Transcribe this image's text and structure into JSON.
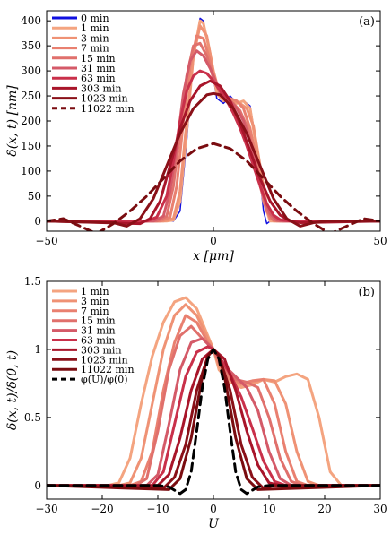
{
  "chart_data": [
    {
      "type": "line",
      "panel_label": "(a)",
      "xlabel": "x [μm]",
      "ylabel": "δ(x, t) [nm]",
      "xlim": [
        -50,
        50
      ],
      "ylim": [
        -20,
        420
      ],
      "xticks": [
        -50,
        0,
        50
      ],
      "yticks": [
        0,
        50,
        100,
        150,
        200,
        250,
        300,
        350,
        400
      ],
      "legend_position": "top-left",
      "grid": false,
      "series": [
        {
          "name": "0 min",
          "color": "#1010e0",
          "dash": false,
          "x": [
            -50,
            -14,
            -12,
            -10,
            -8,
            -6,
            -4,
            -3,
            -1,
            1,
            3,
            5,
            7,
            9,
            11,
            13,
            15,
            16,
            17,
            50
          ],
          "y": [
            0,
            0,
            0,
            20,
            160,
            330,
            405,
            400,
            330,
            245,
            235,
            250,
            235,
            240,
            230,
            150,
            20,
            -5,
            0,
            0
          ]
        },
        {
          "name": "1 min",
          "color": "#f4a480",
          "dash": false,
          "x": [
            -50,
            -14,
            -12,
            -10,
            -8,
            -6,
            -4,
            -3,
            -1,
            1,
            3,
            5,
            7,
            9,
            11,
            13,
            15,
            17,
            50
          ],
          "y": [
            0,
            0,
            2,
            40,
            180,
            330,
            400,
            395,
            335,
            255,
            240,
            245,
            235,
            240,
            225,
            140,
            40,
            0,
            0
          ]
        },
        {
          "name": "3 min",
          "color": "#ef9275",
          "dash": false,
          "x": [
            -50,
            -15,
            -12,
            -10,
            -8,
            -6,
            -4,
            -2,
            0,
            2,
            4,
            6,
            8,
            10,
            12,
            14,
            16,
            18,
            50
          ],
          "y": [
            0,
            0,
            5,
            60,
            200,
            330,
            390,
            370,
            300,
            250,
            240,
            240,
            235,
            225,
            190,
            110,
            30,
            0,
            0
          ]
        },
        {
          "name": "7 min",
          "color": "#e98070",
          "dash": false,
          "x": [
            -50,
            -16,
            -13,
            -11,
            -9,
            -7,
            -5,
            -3,
            -1,
            1,
            3,
            5,
            7,
            9,
            11,
            13,
            15,
            17,
            19,
            50
          ],
          "y": [
            0,
            0,
            8,
            70,
            200,
            310,
            370,
            365,
            320,
            270,
            250,
            245,
            240,
            225,
            185,
            120,
            45,
            5,
            0,
            0
          ]
        },
        {
          "name": "15 min",
          "color": "#e0706c",
          "dash": false,
          "x": [
            -50,
            -17,
            -14,
            -12,
            -10,
            -8,
            -6,
            -4,
            -2,
            0,
            2,
            4,
            6,
            8,
            10,
            12,
            14,
            16,
            18,
            20,
            50
          ],
          "y": [
            0,
            0,
            10,
            70,
            180,
            290,
            350,
            355,
            330,
            285,
            255,
            245,
            235,
            220,
            190,
            140,
            70,
            20,
            2,
            0,
            0
          ]
        },
        {
          "name": "31 min",
          "color": "#d45a68",
          "dash": false,
          "x": [
            -50,
            -18,
            -15,
            -13,
            -11,
            -9,
            -7,
            -5,
            -3,
            -1,
            1,
            3,
            5,
            7,
            9,
            11,
            13,
            15,
            17,
            19,
            21,
            50
          ],
          "y": [
            0,
            0,
            10,
            60,
            150,
            255,
            320,
            340,
            330,
            305,
            275,
            255,
            240,
            225,
            200,
            160,
            105,
            50,
            15,
            2,
            0,
            0
          ]
        },
        {
          "name": "63 min",
          "color": "#c9304a",
          "dash": false,
          "x": [
            -50,
            -20,
            -17,
            -14,
            -12,
            -10,
            -8,
            -6,
            -4,
            -2,
            0,
            2,
            4,
            6,
            8,
            10,
            12,
            14,
            16,
            18,
            20,
            23,
            50
          ],
          "y": [
            0,
            0,
            8,
            50,
            120,
            200,
            260,
            290,
            300,
            295,
            280,
            260,
            240,
            215,
            185,
            150,
            110,
            70,
            35,
            12,
            3,
            0,
            0
          ]
        },
        {
          "name": "303 min",
          "color": "#a8152a",
          "dash": false,
          "x": [
            -50,
            -22,
            -19,
            -16,
            -13,
            -10,
            -7,
            -4,
            -1,
            2,
            5,
            8,
            11,
            14,
            17,
            20,
            23,
            26,
            50
          ],
          "y": [
            0,
            -5,
            5,
            40,
            110,
            185,
            240,
            270,
            280,
            270,
            240,
            195,
            140,
            85,
            40,
            12,
            0,
            -3,
            0
          ]
        },
        {
          "name": "1023 min",
          "color": "#8a1018",
          "dash": false,
          "x": [
            -50,
            -30,
            -26,
            -22,
            -18,
            -14,
            -10,
            -6,
            -2,
            0,
            2,
            6,
            10,
            14,
            18,
            22,
            26,
            30,
            34,
            50
          ],
          "y": [
            0,
            -3,
            -10,
            5,
            45,
            110,
            175,
            225,
            252,
            255,
            252,
            225,
            175,
            110,
            45,
            5,
            -10,
            -3,
            0,
            0
          ]
        },
        {
          "name": "11022 min",
          "color": "#7a0c10",
          "dash": true,
          "x": [
            -50,
            -45,
            -40,
            -35,
            -30,
            -25,
            -20,
            -15,
            -10,
            -5,
            0,
            5,
            10,
            15,
            20,
            25,
            30,
            35,
            40,
            45,
            50
          ],
          "y": [
            0,
            5,
            -10,
            -25,
            -5,
            20,
            50,
            85,
            120,
            145,
            155,
            145,
            120,
            85,
            50,
            20,
            -5,
            -25,
            -10,
            5,
            0
          ]
        }
      ]
    },
    {
      "type": "line",
      "panel_label": "(b)",
      "xlabel": "U",
      "ylabel": "δ(x, t)/δ(0, t)",
      "xlim": [
        -30,
        30
      ],
      "ylim": [
        -0.1,
        1.5
      ],
      "xticks": [
        -30,
        -20,
        -10,
        0,
        10,
        20,
        30
      ],
      "yticks": [
        0,
        0.5,
        1,
        1.5
      ],
      "legend_position": "top-left",
      "grid": false,
      "series": [
        {
          "name": "1 min",
          "color": "#f4a480",
          "dash": false,
          "x": [
            -30,
            -19,
            -17,
            -15,
            -13,
            -11,
            -9,
            -7,
            -5,
            -3,
            -1,
            0,
            1,
            3,
            5,
            7,
            9,
            11,
            13,
            15,
            17,
            19,
            21,
            23,
            30
          ],
          "y": [
            0,
            0,
            0.02,
            0.2,
            0.6,
            0.95,
            1.2,
            1.35,
            1.38,
            1.3,
            1.1,
            1.0,
            0.85,
            0.76,
            0.72,
            0.74,
            0.78,
            0.76,
            0.8,
            0.82,
            0.78,
            0.5,
            0.1,
            0,
            0
          ]
        },
        {
          "name": "3 min",
          "color": "#ef9275",
          "dash": false,
          "x": [
            -30,
            -17,
            -15,
            -13,
            -11,
            -9,
            -7,
            -5,
            -3,
            -1,
            0,
            1,
            3,
            5,
            7,
            9,
            11,
            13,
            15,
            17,
            19,
            30
          ],
          "y": [
            0,
            0,
            0.02,
            0.2,
            0.6,
            1.0,
            1.25,
            1.33,
            1.25,
            1.08,
            1.0,
            0.88,
            0.78,
            0.74,
            0.76,
            0.78,
            0.77,
            0.6,
            0.25,
            0.03,
            0,
            0
          ]
        },
        {
          "name": "7 min",
          "color": "#e98070",
          "dash": false,
          "x": [
            -30,
            -15,
            -13,
            -11,
            -9,
            -7,
            -5,
            -3,
            -1,
            0,
            1,
            3,
            5,
            7,
            9,
            11,
            13,
            15,
            17,
            30
          ],
          "y": [
            0,
            0,
            0.03,
            0.25,
            0.7,
            1.05,
            1.25,
            1.2,
            1.05,
            1.0,
            0.9,
            0.78,
            0.75,
            0.77,
            0.78,
            0.6,
            0.25,
            0.03,
            0,
            0
          ]
        },
        {
          "name": "15 min",
          "color": "#e0706c",
          "dash": false,
          "x": [
            -30,
            -14,
            -12,
            -10,
            -8,
            -6,
            -4,
            -2,
            0,
            2,
            4,
            6,
            8,
            10,
            12,
            14,
            16,
            30
          ],
          "y": [
            0,
            0,
            0.05,
            0.4,
            0.85,
            1.1,
            1.17,
            1.08,
            1.0,
            0.85,
            0.78,
            0.76,
            0.72,
            0.5,
            0.2,
            0.03,
            0,
            0
          ]
        },
        {
          "name": "31 min",
          "color": "#d45a68",
          "dash": false,
          "x": [
            -30,
            -12,
            -10,
            -8,
            -6,
            -4,
            -2,
            0,
            2,
            4,
            6,
            8,
            10,
            12,
            14,
            30
          ],
          "y": [
            0,
            0,
            0.08,
            0.45,
            0.85,
            1.05,
            1.08,
            1.0,
            0.88,
            0.8,
            0.72,
            0.55,
            0.25,
            0.05,
            0,
            0
          ]
        },
        {
          "name": "63 min",
          "color": "#c9304a",
          "dash": false,
          "x": [
            -30,
            -11,
            -9,
            -7,
            -5,
            -3,
            -1,
            0,
            1,
            3,
            5,
            7,
            9,
            11,
            13,
            30
          ],
          "y": [
            0,
            0,
            0.1,
            0.45,
            0.8,
            0.98,
            1.02,
            1.0,
            0.95,
            0.82,
            0.65,
            0.42,
            0.18,
            0.03,
            0,
            0
          ]
        },
        {
          "name": "303 min",
          "color": "#a8152a",
          "dash": false,
          "x": [
            -30,
            -10,
            -8,
            -6,
            -4,
            -2,
            0,
            2,
            4,
            6,
            8,
            10,
            12,
            30
          ],
          "y": [
            0,
            0,
            0.08,
            0.35,
            0.7,
            0.93,
            1.0,
            0.93,
            0.7,
            0.4,
            0.15,
            0.02,
            0,
            0
          ]
        },
        {
          "name": "1023 min",
          "color": "#8a1018",
          "dash": false,
          "x": [
            -30,
            -9,
            -7,
            -5,
            -3,
            -1,
            0,
            1,
            3,
            5,
            7,
            9,
            11,
            30
          ],
          "y": [
            0,
            -0.02,
            0.06,
            0.3,
            0.7,
            0.95,
            1.0,
            0.95,
            0.7,
            0.3,
            0.06,
            -0.02,
            0,
            0
          ]
        },
        {
          "name": "11022 min",
          "color": "#7a0c10",
          "dash": false,
          "x": [
            -30,
            -8,
            -6,
            -4,
            -2,
            -1,
            0,
            1,
            2,
            4,
            6,
            8,
            30
          ],
          "y": [
            0,
            -0.03,
            0.05,
            0.35,
            0.8,
            0.95,
            1.0,
            0.95,
            0.8,
            0.35,
            0.05,
            -0.03,
            0
          ]
        },
        {
          "name": "φ(U)/φ(0)",
          "color": "#000000",
          "dash": true,
          "x": [
            -30,
            -10,
            -8,
            -6,
            -5,
            -4,
            -3,
            -2,
            -1,
            0,
            1,
            2,
            3,
            4,
            5,
            6,
            8,
            10,
            30
          ],
          "y": [
            0,
            0,
            -0.01,
            -0.06,
            -0.03,
            0.1,
            0.4,
            0.72,
            0.93,
            1.0,
            0.93,
            0.72,
            0.4,
            0.1,
            -0.03,
            -0.06,
            -0.01,
            0,
            0
          ]
        }
      ]
    }
  ]
}
